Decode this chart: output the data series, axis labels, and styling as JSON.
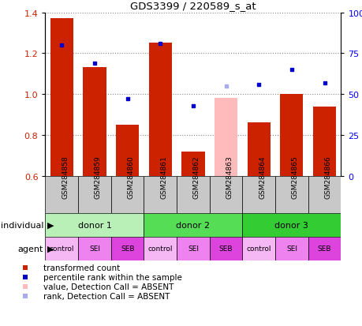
{
  "title": "GDS3399 / 220589_s_at",
  "samples": [
    "GSM284858",
    "GSM284859",
    "GSM284860",
    "GSM284861",
    "GSM284862",
    "GSM284863",
    "GSM284864",
    "GSM284865",
    "GSM284866"
  ],
  "red_values": [
    1.37,
    1.13,
    0.85,
    1.25,
    0.72,
    0.0,
    0.86,
    1.0,
    0.94
  ],
  "blue_values": [
    0.8,
    0.69,
    0.47,
    0.81,
    0.43,
    0.0,
    0.56,
    0.65,
    0.57
  ],
  "absent_red": [
    0.0,
    0.0,
    0.0,
    0.0,
    0.0,
    0.98,
    0.0,
    0.0,
    0.0
  ],
  "absent_blue": [
    0.0,
    0.0,
    0.0,
    0.0,
    0.0,
    0.55,
    0.0,
    0.0,
    0.0
  ],
  "ylim": [
    0.6,
    1.4
  ],
  "yticks": [
    0.6,
    0.8,
    1.0,
    1.2,
    1.4
  ],
  "y2ticks": [
    0,
    25,
    50,
    75,
    100
  ],
  "y2labels": [
    "0",
    "25",
    "50",
    "75",
    "100%"
  ],
  "donors": [
    {
      "label": "donor 1",
      "start": 0,
      "end": 3,
      "color": "#b8f0b8"
    },
    {
      "label": "donor 2",
      "start": 3,
      "end": 6,
      "color": "#55dd55"
    },
    {
      "label": "donor 3",
      "start": 6,
      "end": 9,
      "color": "#33cc33"
    }
  ],
  "agents": [
    "control",
    "SEI",
    "SEB",
    "control",
    "SEI",
    "SEB",
    "control",
    "SEI",
    "SEB"
  ],
  "agent_colors": [
    "#f5b8f5",
    "#ee82ee",
    "#dd44dd",
    "#f5b8f5",
    "#ee82ee",
    "#dd44dd",
    "#f5b8f5",
    "#ee82ee",
    "#dd44dd"
  ],
  "bar_width": 0.7,
  "red_color": "#cc2200",
  "blue_color": "#0000cc",
  "absent_red_color": "#ffbbbb",
  "absent_blue_color": "#aaaaee",
  "grid_color": "#888888",
  "sample_row_color": "#c8c8c8"
}
